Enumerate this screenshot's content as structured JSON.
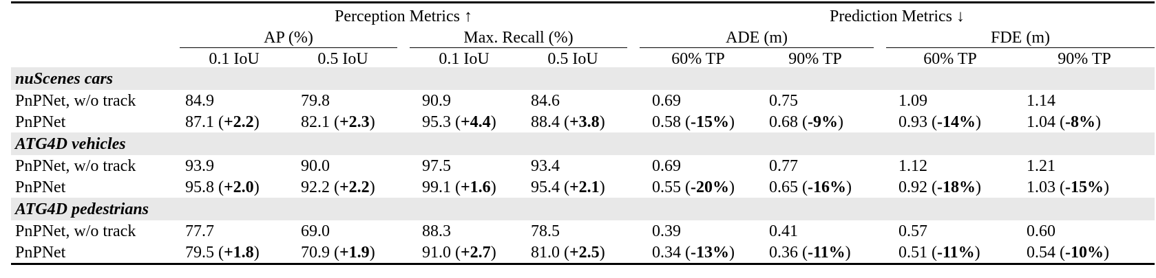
{
  "header": {
    "group_perception": "Perception Metrics ↑",
    "group_prediction": "Prediction Metrics ↓",
    "metric_ap": "AP (%)",
    "metric_recall": "Max. Recall (%)",
    "metric_ade": "ADE (m)",
    "metric_fde": "FDE (m)",
    "sub_iou01": "0.1 IoU",
    "sub_iou05": "0.5 IoU",
    "sub_tp60": "60% TP",
    "sub_tp90": "90% TP"
  },
  "sections": [
    {
      "title": "nuScenes cars",
      "rows": [
        {
          "label": "PnPNet, w/o track",
          "cells": [
            [
              "84.9",
              ""
            ],
            [
              "79.8",
              ""
            ],
            [
              "90.9",
              ""
            ],
            [
              "84.6",
              ""
            ],
            [
              "0.69",
              ""
            ],
            [
              "0.75",
              ""
            ],
            [
              "1.09",
              ""
            ],
            [
              "1.14",
              ""
            ]
          ]
        },
        {
          "label": "PnPNet",
          "cells": [
            [
              "87.1",
              "+2.2"
            ],
            [
              "82.1",
              "+2.3"
            ],
            [
              "95.3",
              "+4.4"
            ],
            [
              "88.4",
              "+3.8"
            ],
            [
              "0.58",
              "-15%"
            ],
            [
              "0.68",
              "-9%"
            ],
            [
              "0.93",
              "-14%"
            ],
            [
              "1.04",
              "-8%"
            ]
          ]
        }
      ]
    },
    {
      "title": "ATG4D vehicles",
      "rows": [
        {
          "label": "PnPNet, w/o track",
          "cells": [
            [
              "93.9",
              ""
            ],
            [
              "90.0",
              ""
            ],
            [
              "97.5",
              ""
            ],
            [
              "93.4",
              ""
            ],
            [
              "0.69",
              ""
            ],
            [
              "0.77",
              ""
            ],
            [
              "1.12",
              ""
            ],
            [
              "1.21",
              ""
            ]
          ]
        },
        {
          "label": "PnPNet",
          "cells": [
            [
              "95.8",
              "+2.0"
            ],
            [
              "92.2",
              "+2.2"
            ],
            [
              "99.1",
              "+1.6"
            ],
            [
              "95.4",
              "+2.1"
            ],
            [
              "0.55",
              "-20%"
            ],
            [
              "0.65",
              "-16%"
            ],
            [
              "0.92",
              "-18%"
            ],
            [
              "1.03",
              "-15%"
            ]
          ]
        }
      ]
    },
    {
      "title": "ATG4D pedestrians",
      "rows": [
        {
          "label": "PnPNet, w/o track",
          "cells": [
            [
              "77.7",
              ""
            ],
            [
              "69.0",
              ""
            ],
            [
              "88.3",
              ""
            ],
            [
              "78.5",
              ""
            ],
            [
              "0.39",
              ""
            ],
            [
              "0.41",
              ""
            ],
            [
              "0.57",
              ""
            ],
            [
              "0.60",
              ""
            ]
          ]
        },
        {
          "label": "PnPNet",
          "cells": [
            [
              "79.5",
              "+1.8"
            ],
            [
              "70.9",
              "+1.9"
            ],
            [
              "91.0",
              "+2.7"
            ],
            [
              "81.0",
              "+2.5"
            ],
            [
              "0.34",
              "-13%"
            ],
            [
              "0.36",
              "-11%"
            ],
            [
              "0.51",
              "-11%"
            ],
            [
              "0.54",
              "-10%"
            ]
          ]
        }
      ]
    }
  ]
}
